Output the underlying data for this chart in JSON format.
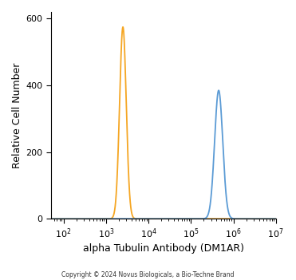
{
  "title": "",
  "xlabel": "alpha Tubulin Antibody (DM1AR)",
  "ylabel": "Relative Cell Number",
  "copyright": "Copyright © 2024 Novus Biologicals, a Bio-Techne Brand",
  "xlim_log": [
    1.7,
    7
  ],
  "ylim": [
    0,
    620
  ],
  "yticks": [
    0,
    200,
    400,
    600
  ],
  "xtick_locs": [
    100,
    1000,
    10000,
    100000,
    1000000,
    10000000
  ],
  "xtick_labels": [
    "$10^2$",
    "$10^3$",
    "$10^4$",
    "$10^5$",
    "$10^6$",
    "$10^7$"
  ],
  "background_color": "#ffffff",
  "orange_color": "#F5A623",
  "blue_color": "#5B9BD5",
  "orange_peak_x": 2500,
  "orange_peak_y": 575,
  "orange_sigma": 0.18,
  "blue_peak_x": 450000,
  "blue_peak_y": 385,
  "blue_sigma": 0.22,
  "line_width": 1.3,
  "xlabel_fontsize": 9,
  "ylabel_fontsize": 9,
  "tick_fontsize": 8,
  "copyright_fontsize": 5.5
}
